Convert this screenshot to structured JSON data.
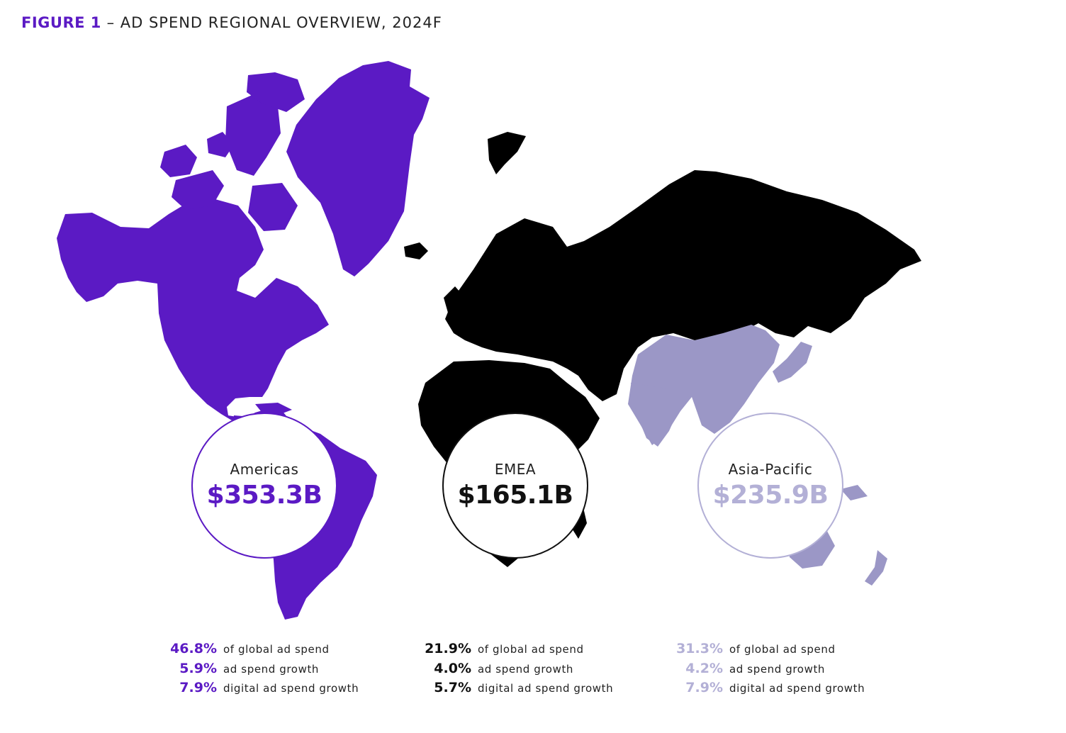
{
  "figure": {
    "label": "FIGURE 1",
    "separator": " – ",
    "title": "AD SPEND REGIONAL OVERVIEW, 2024F"
  },
  "colors": {
    "americas": "#5b1ac4",
    "emea": "#000000",
    "apac": "#9b97c6",
    "apac_text": "#b3b0d6"
  },
  "regions": [
    {
      "name": "Americas",
      "value": "$353.3B",
      "stats": [
        {
          "value": "46.8%",
          "label": "of global ad spend"
        },
        {
          "value": "5.9%",
          "label": "ad spend growth"
        },
        {
          "value": "7.9%",
          "label": "digital ad spend growth"
        }
      ]
    },
    {
      "name": "EMEA",
      "value": "$165.1B",
      "stats": [
        {
          "value": "21.9%",
          "label": "of global ad spend"
        },
        {
          "value": "4.0%",
          "label": "ad spend growth"
        },
        {
          "value": "5.7%",
          "label": "digital ad spend growth"
        }
      ]
    },
    {
      "name": "Asia-Pacific",
      "value": "$235.9B",
      "stats": [
        {
          "value": "31.3%",
          "label": "of global ad spend"
        },
        {
          "value": "4.2%",
          "label": "ad spend growth"
        },
        {
          "value": "7.9%",
          "label": "digital ad spend growth"
        }
      ]
    }
  ]
}
